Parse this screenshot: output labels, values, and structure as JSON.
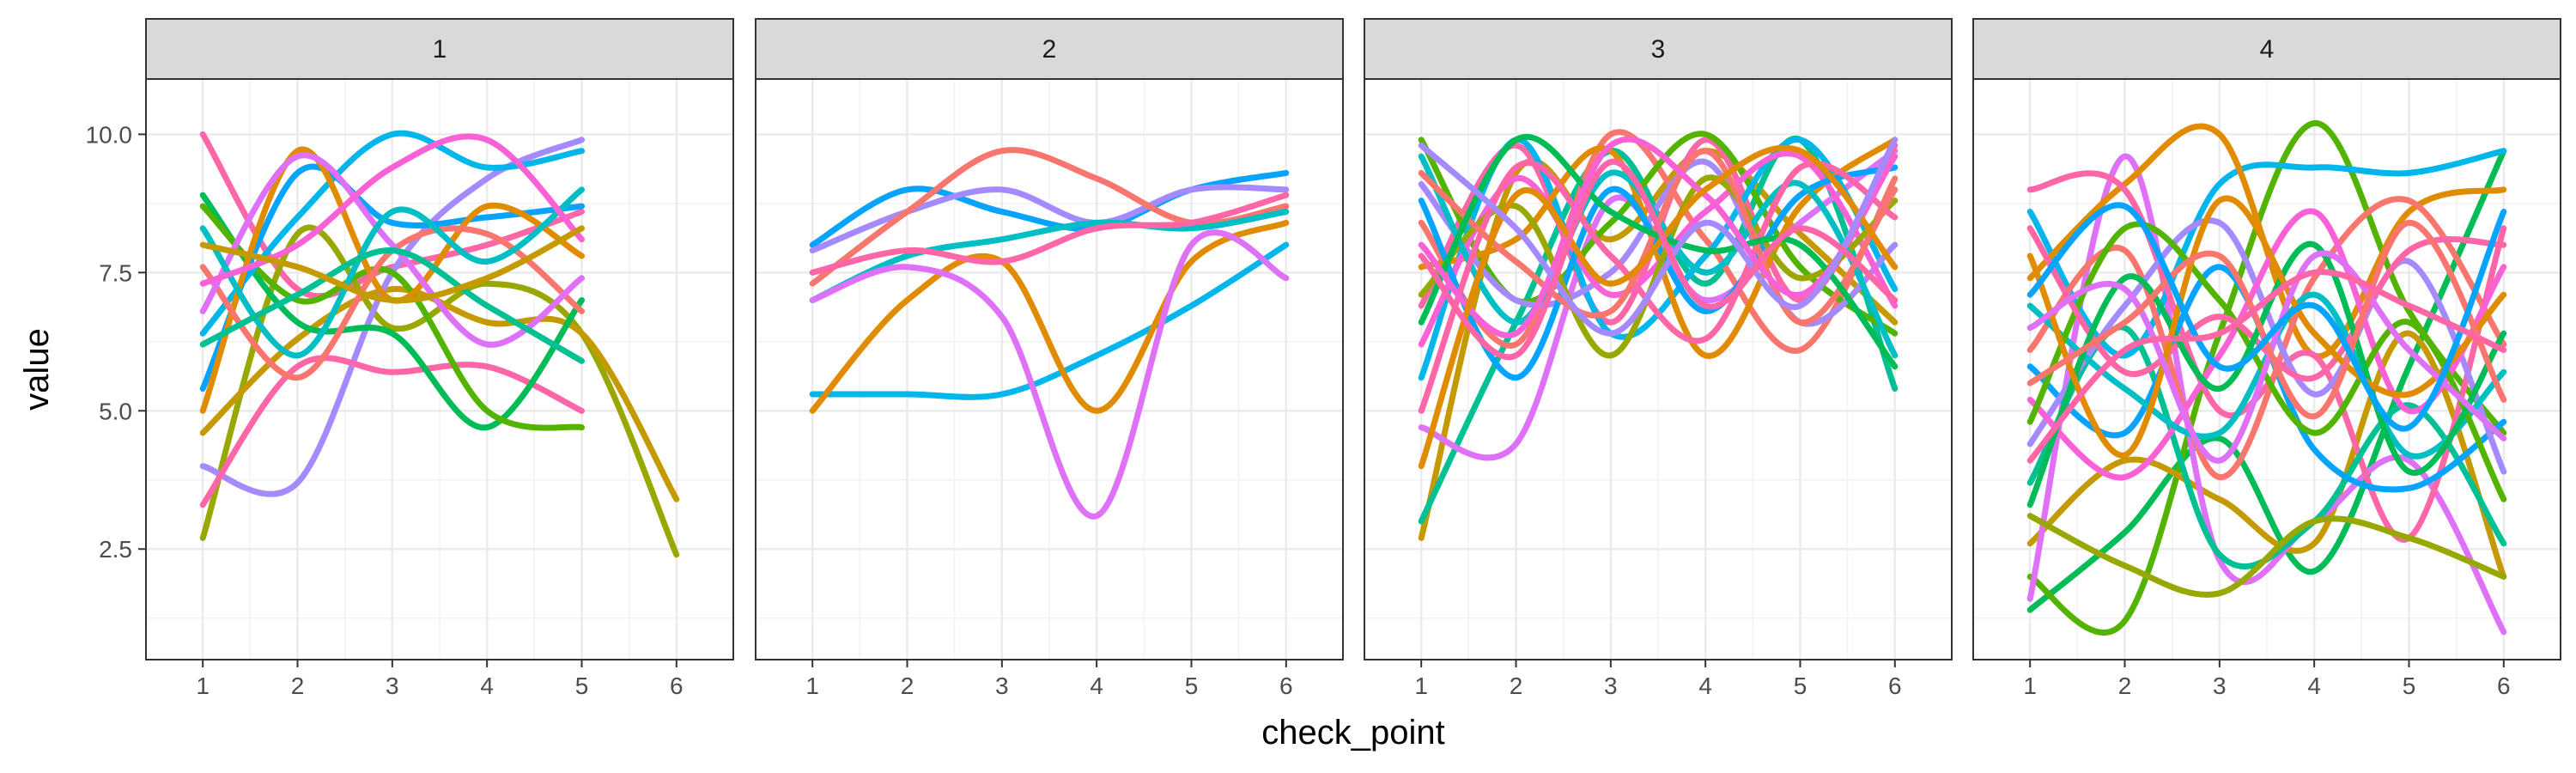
{
  "chart_data": {
    "type": "line",
    "xlabel": "check_point",
    "ylabel": "value",
    "x_ticks": [
      1,
      2,
      3,
      4,
      5,
      6
    ],
    "y_ticks": [
      2.5,
      5.0,
      7.5,
      10.0
    ],
    "y_tick_labels": [
      "2.5",
      "5.0",
      "7.5",
      "10.0"
    ],
    "xlim": [
      0.4,
      6.6
    ],
    "ylim": [
      0.5,
      11.0
    ],
    "grid": true,
    "smoothed": true,
    "legend": "none",
    "palette": [
      "#F8766D",
      "#E08B00",
      "#C49A00",
      "#99A800",
      "#53B400",
      "#00BC56",
      "#00C094",
      "#00BFC4",
      "#00B6EB",
      "#06A4FF",
      "#A58AFF",
      "#DF70F8",
      "#FB61D7",
      "#FF66A8"
    ],
    "panels": [
      {
        "label": "1",
        "series": [
          {
            "color": "#FF66A8",
            "values": [
              10.0,
              7.2,
              7.6,
              8.0,
              8.6
            ]
          },
          {
            "color": "#99A800",
            "values": [
              2.7,
              8.2,
              6.5,
              7.3,
              6.4,
              2.4
            ]
          },
          {
            "color": "#C49A00",
            "values": [
              4.6,
              6.3,
              7.2,
              6.6,
              6.4,
              3.4
            ]
          },
          {
            "color": "#A58AFF",
            "values": [
              4.0,
              3.7,
              7.5,
              9.2,
              9.9
            ]
          },
          {
            "color": "#FF66A8",
            "values": [
              3.3,
              5.8,
              5.7,
              5.8,
              5.0
            ]
          },
          {
            "color": "#00BC56",
            "values": [
              8.9,
              6.6,
              6.4,
              4.7,
              7.0
            ]
          },
          {
            "color": "#53B400",
            "values": [
              8.7,
              7.0,
              7.5,
              5.0,
              4.7
            ]
          },
          {
            "color": "#00B6EB",
            "values": [
              6.4,
              8.5,
              10.0,
              9.4,
              9.7
            ]
          },
          {
            "color": "#06A4FF",
            "values": [
              5.4,
              9.3,
              8.4,
              8.5,
              8.7
            ]
          },
          {
            "color": "#E08B00",
            "values": [
              5.0,
              9.7,
              7.0,
              8.7,
              7.8
            ]
          },
          {
            "color": "#F8766D",
            "values": [
              7.6,
              5.6,
              7.9,
              8.2,
              6.8
            ]
          },
          {
            "color": "#DF70F8",
            "values": [
              6.8,
              9.6,
              8.0,
              6.2,
              7.4
            ]
          },
          {
            "color": "#00BFC4",
            "values": [
              8.3,
              6.0,
              8.6,
              7.7,
              9.0
            ]
          },
          {
            "color": "#FB61D7",
            "values": [
              7.3,
              8.0,
              9.4,
              9.9,
              8.1
            ]
          },
          {
            "color": "#00C094",
            "values": [
              6.2,
              7.1,
              7.9,
              6.9,
              5.9
            ]
          },
          {
            "color": "#C49A00",
            "values": [
              8.0,
              7.6,
              7.0,
              7.4,
              8.3
            ]
          }
        ]
      },
      {
        "label": "2",
        "series": [
          {
            "color": "#06A4FF",
            "values": [
              8.0,
              9.0,
              8.6,
              8.3,
              9.0,
              9.3
            ]
          },
          {
            "color": "#A58AFF",
            "values": [
              7.9,
              8.6,
              9.0,
              8.4,
              9.0,
              9.0
            ]
          },
          {
            "color": "#F8766D",
            "values": [
              7.3,
              8.6,
              9.7,
              9.2,
              8.4,
              8.7
            ]
          },
          {
            "color": "#00B6EB",
            "values": [
              5.3,
              5.3,
              5.3,
              6.0,
              6.9,
              8.0
            ]
          },
          {
            "color": "#00BFC4",
            "values": [
              7.0,
              7.8,
              8.1,
              8.4,
              8.3,
              8.6
            ]
          },
          {
            "color": "#E08B00",
            "values": [
              5.0,
              7.0,
              7.7,
              5.0,
              7.7,
              8.4
            ]
          },
          {
            "color": "#DF70F8",
            "values": [
              7.0,
              7.6,
              6.7,
              3.1,
              8.0,
              7.4
            ]
          },
          {
            "color": "#FF66A8",
            "values": [
              7.5,
              7.9,
              7.7,
              8.3,
              8.4,
              8.9
            ]
          }
        ]
      },
      {
        "label": "3",
        "series": [
          {
            "color": "#C49A00",
            "values": [
              2.7,
              9.3,
              8.1,
              9.7,
              8.2,
              6.6
            ]
          },
          {
            "color": "#00C094",
            "values": [
              3.0,
              6.6,
              9.7,
              7.3,
              9.9,
              5.4
            ]
          },
          {
            "color": "#DF70F8",
            "values": [
              4.7,
              4.4,
              8.8,
              7.0,
              8.4,
              9.7
            ]
          },
          {
            "color": "#FF66A8",
            "values": [
              6.9,
              9.8,
              6.6,
              9.9,
              7.0,
              9.8
            ]
          },
          {
            "color": "#F8766D",
            "values": [
              8.4,
              6.2,
              10.0,
              8.1,
              6.1,
              9.2
            ]
          },
          {
            "color": "#53B400",
            "values": [
              9.9,
              7.0,
              8.4,
              10.0,
              7.6,
              6.4
            ]
          },
          {
            "color": "#00B6EB",
            "values": [
              5.6,
              9.9,
              6.4,
              7.8,
              9.9,
              7.2
            ]
          },
          {
            "color": "#E08B00",
            "values": [
              7.6,
              8.1,
              9.7,
              6.0,
              8.7,
              9.9
            ]
          },
          {
            "color": "#A58AFF",
            "values": [
              9.1,
              7.0,
              7.5,
              9.5,
              6.6,
              8.0
            ]
          },
          {
            "color": "#FB61D7",
            "values": [
              6.2,
              9.2,
              7.1,
              8.6,
              9.6,
              6.9
            ]
          },
          {
            "color": "#06A4FF",
            "values": [
              8.8,
              5.6,
              9.0,
              6.8,
              8.9,
              9.4
            ]
          },
          {
            "color": "#99A800",
            "values": [
              7.1,
              8.7,
              6.0,
              9.2,
              7.4,
              8.8
            ]
          },
          {
            "color": "#00BFC4",
            "values": [
              9.6,
              6.6,
              9.3,
              7.5,
              9.1,
              6.0
            ]
          },
          {
            "color": "#FF66A8",
            "values": [
              5.0,
              9.4,
              7.8,
              6.3,
              9.4,
              8.5
            ]
          },
          {
            "color": "#F8766D",
            "values": [
              9.3,
              7.7,
              6.8,
              9.7,
              6.6,
              9.0
            ]
          },
          {
            "color": "#00BC56",
            "values": [
              6.6,
              9.9,
              8.6,
              7.9,
              8.0,
              5.8
            ]
          },
          {
            "color": "#FB61D7",
            "values": [
              8.0,
              6.4,
              9.8,
              8.9,
              7.1,
              9.6
            ]
          },
          {
            "color": "#E08B00",
            "values": [
              4.0,
              8.9,
              7.3,
              9.0,
              9.7,
              7.6
            ]
          },
          {
            "color": "#A58AFF",
            "values": [
              9.8,
              8.3,
              6.4,
              8.4,
              6.9,
              9.9
            ]
          },
          {
            "color": "#FF66A8",
            "values": [
              7.8,
              6.0,
              9.5,
              6.9,
              8.3,
              7.0
            ]
          }
        ]
      },
      {
        "label": "4",
        "series": [
          {
            "color": "#00BC56",
            "values": [
              1.4,
              2.8,
              4.5,
              2.1,
              5.8,
              9.7
            ]
          },
          {
            "color": "#53B400",
            "values": [
              2.0,
              1.2,
              6.4,
              10.2,
              6.8,
              4.6
            ]
          },
          {
            "color": "#C49A00",
            "values": [
              2.6,
              4.1,
              3.4,
              2.6,
              6.4,
              2.0
            ]
          },
          {
            "color": "#DF70F8",
            "values": [
              1.6,
              9.6,
              2.3,
              3.0,
              4.1,
              1.0
            ]
          },
          {
            "color": "#00B6EB",
            "values": [
              8.6,
              6.0,
              9.1,
              9.4,
              9.3,
              9.7
            ]
          },
          {
            "color": "#E08B00",
            "values": [
              7.4,
              9.1,
              10.0,
              6.0,
              8.6,
              9.0
            ]
          },
          {
            "color": "#FF66A8",
            "values": [
              9.0,
              9.0,
              5.0,
              6.0,
              2.7,
              8.3
            ]
          },
          {
            "color": "#00C094",
            "values": [
              3.7,
              6.5,
              2.4,
              3.0,
              5.1,
              2.6
            ]
          },
          {
            "color": "#99A800",
            "values": [
              3.1,
              2.2,
              1.7,
              3.0,
              2.7,
              2.0
            ]
          },
          {
            "color": "#06A4FF",
            "values": [
              5.8,
              4.6,
              7.6,
              4.3,
              3.6,
              4.8
            ]
          },
          {
            "color": "#F8766D",
            "values": [
              6.1,
              7.9,
              3.8,
              7.4,
              8.8,
              6.2
            ]
          },
          {
            "color": "#A58AFF",
            "values": [
              4.4,
              6.9,
              8.4,
              5.3,
              7.7,
              3.9
            ]
          },
          {
            "color": "#FB61D7",
            "values": [
              5.2,
              3.8,
              6.0,
              8.6,
              5.0,
              7.6
            ]
          },
          {
            "color": "#00BFC4",
            "values": [
              6.9,
              5.4,
              4.6,
              7.1,
              4.2,
              5.7
            ]
          },
          {
            "color": "#53B400",
            "values": [
              4.8,
              8.3,
              7.0,
              4.6,
              6.6,
              3.4
            ]
          },
          {
            "color": "#FF66A8",
            "values": [
              8.3,
              5.7,
              6.7,
              5.6,
              7.9,
              8.0
            ]
          },
          {
            "color": "#00BC56",
            "values": [
              3.3,
              7.4,
              5.4,
              8.0,
              3.9,
              6.4
            ]
          },
          {
            "color": "#E08B00",
            "values": [
              7.8,
              4.2,
              8.8,
              6.4,
              5.3,
              7.1
            ]
          },
          {
            "color": "#DF70F8",
            "values": [
              6.5,
              7.2,
              4.1,
              7.8,
              6.1,
              4.5
            ]
          },
          {
            "color": "#F8766D",
            "values": [
              5.5,
              6.6,
              7.8,
              4.9,
              8.4,
              5.2
            ]
          },
          {
            "color": "#06A4FF",
            "values": [
              7.1,
              8.7,
              5.8,
              6.9,
              4.7,
              8.6
            ]
          },
          {
            "color": "#FF66A8",
            "values": [
              4.1,
              6.1,
              6.4,
              7.5,
              6.9,
              6.1
            ]
          }
        ]
      }
    ]
  }
}
